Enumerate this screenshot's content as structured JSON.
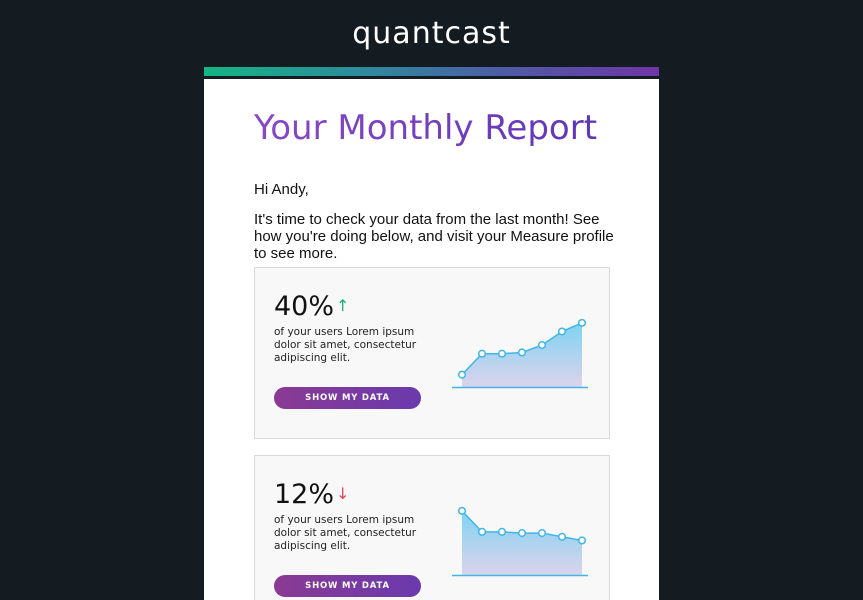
{
  "brand": {
    "logo_text": "quantcast",
    "accent_start": "#13b583",
    "accent_end": "#6f35a7"
  },
  "report": {
    "title": "Your Monthly Report",
    "greeting": "Hi Andy,",
    "intro": "It's time to check your data from the last month! See how you're doing below, and visit your Measure profile to see more."
  },
  "cards": [
    {
      "value": "40%",
      "trend": "up",
      "arrow": "↑",
      "description": "of your users Lorem ipsum dolor sit amet, consectetur adipiscing elit.",
      "button_label": "SHOW MY DATA",
      "chart_data": {
        "type": "area",
        "values": [
          10,
          27,
          27,
          28,
          34,
          45,
          52
        ]
      }
    },
    {
      "value": "12%",
      "trend": "down",
      "arrow": "↓",
      "description": "of your users Lorem ipsum dolor sit amet, consectetur adipiscing elit.",
      "button_label": "SHOW MY DATA",
      "chart_data": {
        "type": "area",
        "values": [
          52,
          35,
          35,
          34,
          34,
          31,
          28
        ]
      }
    }
  ]
}
